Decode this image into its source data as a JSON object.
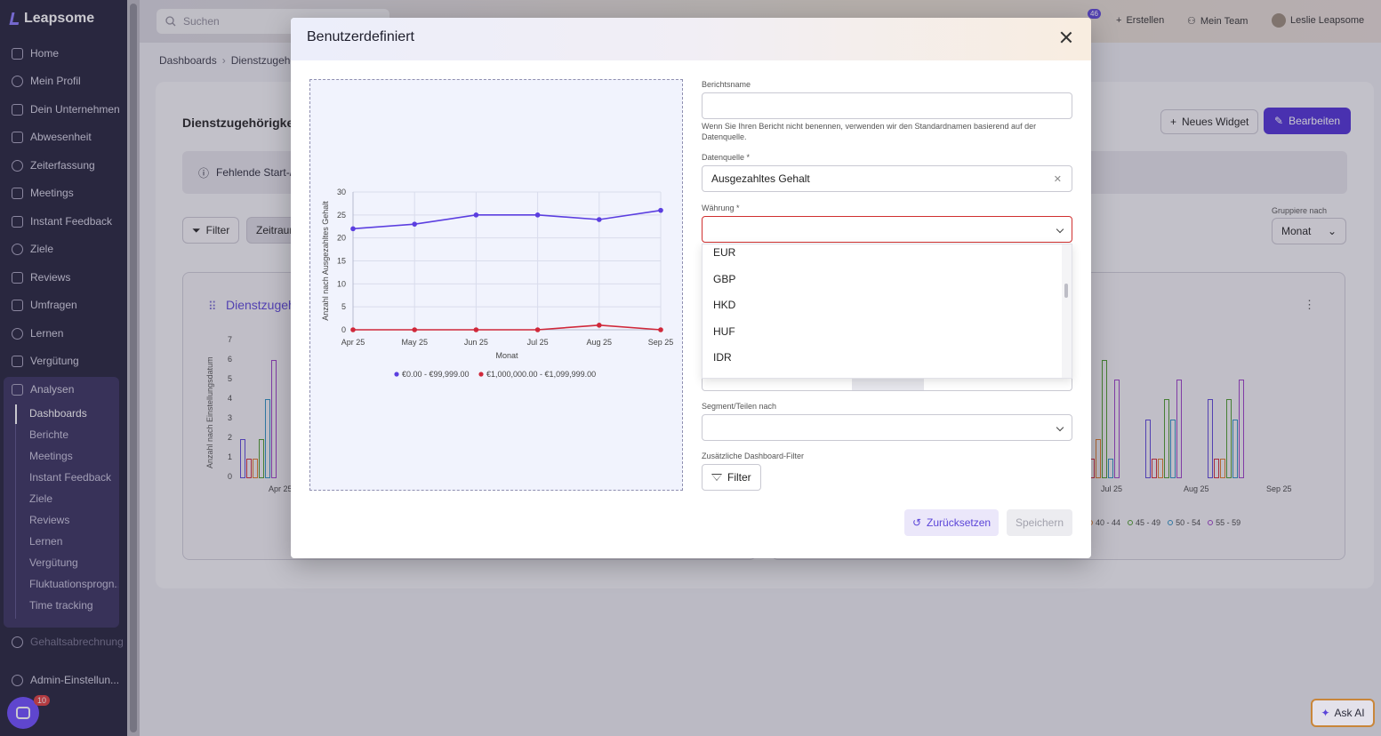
{
  "sidebar": {
    "brand": "Leapsome",
    "items": [
      {
        "label": "Home",
        "icon": "home-icon"
      },
      {
        "label": "Mein Profil",
        "icon": "user-icon"
      },
      {
        "label": "Dein Unternehmen",
        "icon": "people-icon"
      },
      {
        "label": "Abwesenheit",
        "icon": "calendar-icon"
      },
      {
        "label": "Zeiterfassung",
        "icon": "clock-icon"
      },
      {
        "label": "Meetings",
        "icon": "meetings-icon"
      },
      {
        "label": "Instant Feedback",
        "icon": "chat-icon"
      },
      {
        "label": "Ziele",
        "icon": "target-icon"
      },
      {
        "label": "Reviews",
        "icon": "pen-icon"
      },
      {
        "label": "Umfragen",
        "icon": "pulse-icon"
      },
      {
        "label": "Lernen",
        "icon": "book-icon"
      },
      {
        "label": "Vergütung",
        "icon": "coins-icon"
      },
      {
        "label": "Analysen",
        "icon": "analytics-icon"
      }
    ],
    "sub_items": [
      "Dashboards",
      "Berichte",
      "Meetings",
      "Instant Feedback",
      "Ziele",
      "Reviews",
      "Lernen",
      "Vergütung",
      "Fluktuationsprogn...",
      "Time tracking"
    ],
    "payroll": "Gehaltsabrechnung",
    "admin": "Admin-Einstellun...",
    "chat_badge": "10"
  },
  "topbar": {
    "search_placeholder": "Suchen",
    "notif_count": "46",
    "create": "Erstellen",
    "team": "Mein Team",
    "user": "Leslie Leapsome"
  },
  "page": {
    "breadcrumb_root": "Dashboards",
    "breadcrumb_current": "Dienstzugehö",
    "title": "Dienstzugehörigkeit",
    "new_widget": "Neues Widget",
    "edit": "Bearbeiten",
    "info": "Fehlende Start-/E",
    "filter": "Filter",
    "zeitraum": "Zeitraum",
    "group_label": "Gruppiere nach",
    "group_value": "Monat",
    "card_title": "Dienstzugeh",
    "bg_ylabel": "Anzahl nach Einstellungsdatum",
    "bg_left_x": "Apr 25",
    "bg_right_x": [
      "Jul 25",
      "Aug 25",
      "Sep 25"
    ],
    "bg_legend": [
      "40 - 44",
      "45 - 49",
      "50 - 54",
      "55 - 59"
    ],
    "bg_y_ticks": [
      "7",
      "6",
      "5",
      "4",
      "3",
      "2",
      "1",
      "0"
    ]
  },
  "modal": {
    "title": "Benutzerdefiniert",
    "report_name_label": "Berichtsname",
    "report_name_value": "",
    "report_help": "Wenn Sie Ihren Bericht nicht benennen, verwenden wir den Standardnamen basierend auf der Datenquelle.",
    "source_label": "Datenquelle *",
    "source_value": "Ausgezahltes Gehalt",
    "currency_label": "Währung *",
    "currency_value": "",
    "currency_options": [
      "EUR",
      "GBP",
      "HKD",
      "HUF",
      "IDR"
    ],
    "segment_label": "Segment/Teilen nach",
    "filters_label": "Zusätzliche Dashboard-Filter",
    "filter_button": "Filter",
    "reset": "Zurücksetzen",
    "save": "Speichern"
  },
  "chart_data": {
    "type": "line",
    "categories": [
      "Apr 25",
      "May 25",
      "Jun 25",
      "Jul 25",
      "Aug 25",
      "Sep 25"
    ],
    "series": [
      {
        "name": "€0.00 - €99,999.00",
        "values": [
          22,
          23,
          25,
          25,
          24,
          26
        ],
        "color": "#5b3ee0"
      },
      {
        "name": "€1,000,000.00 - €1,099,999.00",
        "values": [
          0,
          0,
          0,
          0,
          1,
          0
        ],
        "color": "#d0283a"
      }
    ],
    "xlabel": "Monat",
    "ylabel": "Anzahl nach Ausgezahltes Gehalt",
    "ylim": [
      0,
      30
    ],
    "y_ticks": [
      0,
      5,
      10,
      15,
      20,
      25,
      30
    ],
    "legend": "bottom",
    "grid": true
  },
  "ask_ai": "Ask AI"
}
